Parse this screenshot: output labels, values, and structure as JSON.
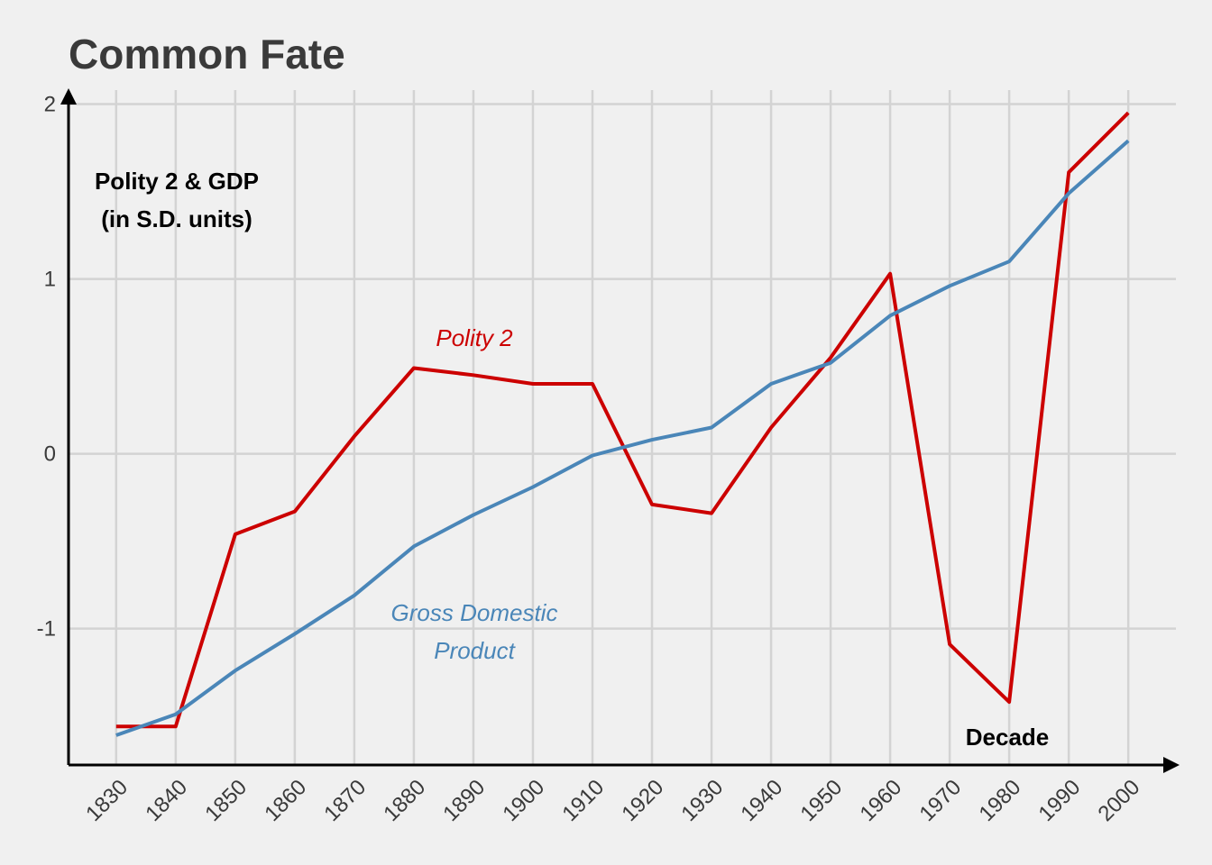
{
  "chart_data": {
    "type": "line",
    "title": "Common Fate",
    "ylabel_lines": [
      "Polity 2 & GDP",
      "(in S.D. units)"
    ],
    "xlabel": "Decade",
    "x": [
      1830,
      1840,
      1850,
      1860,
      1870,
      1880,
      1890,
      1900,
      1910,
      1920,
      1930,
      1940,
      1950,
      1960,
      1970,
      1980,
      1990,
      2000
    ],
    "x_ticks": [
      "1830",
      "1840",
      "1850",
      "1860",
      "1870",
      "1880",
      "1890",
      "1900",
      "1910",
      "1920",
      "1930",
      "1940",
      "1950",
      "1960",
      "1970",
      "1980",
      "1990",
      "2000"
    ],
    "y_ticks": [
      "2",
      "1",
      "0",
      "-1"
    ],
    "y_tick_values": [
      2,
      1,
      0,
      -1
    ],
    "ylim": [
      -1.78,
      2.08
    ],
    "xlim": [
      1822,
      2008
    ],
    "grid": true,
    "series": [
      {
        "name": "Polity 2",
        "label_lines": [
          "Polity 2"
        ],
        "color": "#cc0000",
        "values": [
          -1.56,
          -1.56,
          -0.46,
          -0.33,
          0.1,
          0.49,
          0.45,
          0.4,
          0.4,
          -0.29,
          -0.34,
          0.15,
          0.55,
          1.03,
          -1.09,
          -1.42,
          1.61,
          1.95
        ]
      },
      {
        "name": "Gross Domestic Product",
        "label_lines": [
          "Gross Domestic",
          "Product"
        ],
        "color": "#4a86b8",
        "values": [
          -1.61,
          -1.49,
          -1.24,
          -1.03,
          -0.81,
          -0.53,
          -0.35,
          -0.19,
          -0.01,
          0.08,
          0.15,
          0.4,
          0.52,
          0.79,
          0.96,
          1.1,
          1.49,
          1.79
        ]
      }
    ]
  }
}
